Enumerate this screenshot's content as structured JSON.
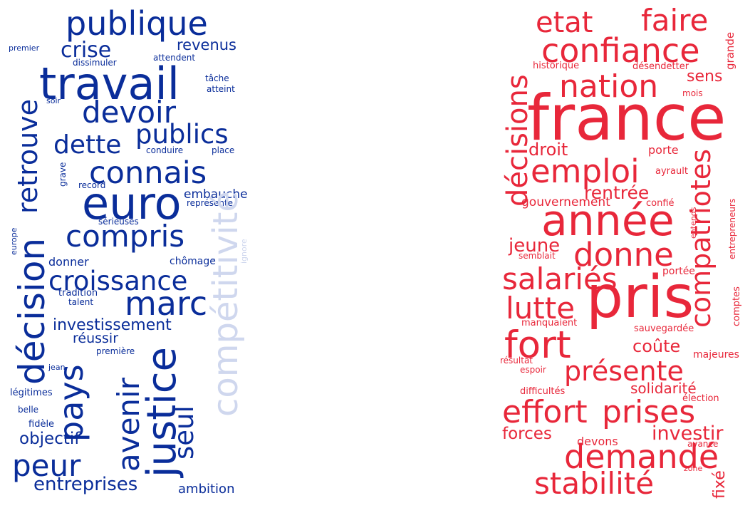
{
  "clouds": [
    {
      "id": "left",
      "color": "#0a2d9a",
      "words": [
        {
          "text": "publique",
          "weight": 0.5
        },
        {
          "text": "crise",
          "weight": 0.32
        },
        {
          "text": "revenus",
          "weight": 0.22
        },
        {
          "text": "premier",
          "weight": 0.08
        },
        {
          "text": "dissimuler",
          "weight": 0.09
        },
        {
          "text": "attendent",
          "weight": 0.09
        },
        {
          "text": "travail",
          "weight": 0.7
        },
        {
          "text": "tâche",
          "weight": 0.1
        },
        {
          "text": "atteint",
          "weight": 0.1
        },
        {
          "text": "soir",
          "weight": 0.09
        },
        {
          "text": "devoir",
          "weight": 0.45
        },
        {
          "text": "retrouve",
          "weight": 0.4
        },
        {
          "text": "publics",
          "weight": 0.42
        },
        {
          "text": "dette",
          "weight": 0.4
        },
        {
          "text": "conduire",
          "weight": 0.1
        },
        {
          "text": "place",
          "weight": 0.1
        },
        {
          "text": "grave",
          "weight": 0.08
        },
        {
          "text": "connais",
          "weight": 0.48
        },
        {
          "text": "record",
          "weight": 0.09
        },
        {
          "text": "euro",
          "weight": 0.8
        },
        {
          "text": "embauche",
          "weight": 0.16
        },
        {
          "text": "représente",
          "weight": 0.1
        },
        {
          "text": "sérieuses",
          "weight": 0.09
        },
        {
          "text": "compris",
          "weight": 0.48
        },
        {
          "text": "compétitivité",
          "weight": 0.55,
          "faded": true
        },
        {
          "text": "ignore",
          "weight": 0.08,
          "faded": true
        },
        {
          "text": "europe",
          "weight": 0.08
        },
        {
          "text": "décision",
          "weight": 0.55
        },
        {
          "text": "donner",
          "weight": 0.14
        },
        {
          "text": "chômage",
          "weight": 0.12
        },
        {
          "text": "croissance",
          "weight": 0.42
        },
        {
          "text": "tradition",
          "weight": 0.11
        },
        {
          "text": "marc",
          "weight": 0.52
        },
        {
          "text": "talent",
          "weight": 0.1
        },
        {
          "text": "investissement",
          "weight": 0.3
        },
        {
          "text": "réussir",
          "weight": 0.2
        },
        {
          "text": "première",
          "weight": 0.09
        },
        {
          "text": "pays",
          "weight": 0.58
        },
        {
          "text": "jean",
          "weight": 0.09
        },
        {
          "text": "avenir",
          "weight": 0.45
        },
        {
          "text": "justice",
          "weight": 0.62
        },
        {
          "text": "seul",
          "weight": 0.48
        },
        {
          "text": "légitimes",
          "weight": 0.1
        },
        {
          "text": "belle",
          "weight": 0.09
        },
        {
          "text": "fidèle",
          "weight": 0.1
        },
        {
          "text": "objectif",
          "weight": 0.26
        },
        {
          "text": "peur",
          "weight": 0.55
        },
        {
          "text": "entreprises",
          "weight": 0.3
        },
        {
          "text": "ambition",
          "weight": 0.14
        }
      ]
    },
    {
      "id": "right",
      "color": "#e8273a",
      "words": [
        {
          "text": "etat",
          "weight": 0.45
        },
        {
          "text": "faire",
          "weight": 0.48
        },
        {
          "text": "grande",
          "weight": 0.1
        },
        {
          "text": "confiance",
          "weight": 0.55
        },
        {
          "text": "historique",
          "weight": 0.1
        },
        {
          "text": "désendetter",
          "weight": 0.1
        },
        {
          "text": "décisions",
          "weight": 0.48
        },
        {
          "text": "nation",
          "weight": 0.5
        },
        {
          "text": "sens",
          "weight": 0.18
        },
        {
          "text": "mois",
          "weight": 0.1
        },
        {
          "text": "france",
          "weight": 1.0
        },
        {
          "text": "droit",
          "weight": 0.22
        },
        {
          "text": "porte",
          "weight": 0.15
        },
        {
          "text": "emploi",
          "weight": 0.5
        },
        {
          "text": "ayrault",
          "weight": 0.11
        },
        {
          "text": "compatriotes",
          "weight": 0.45
        },
        {
          "text": "rentrée",
          "weight": 0.26
        },
        {
          "text": "gouvernement",
          "weight": 0.16
        },
        {
          "text": "confié",
          "weight": 0.12
        },
        {
          "text": "entrepreneurs",
          "weight": 0.1
        },
        {
          "text": "année",
          "weight": 0.75
        },
        {
          "text": "entends",
          "weight": 0.1
        },
        {
          "text": "jeune",
          "weight": 0.28
        },
        {
          "text": "semblait",
          "weight": 0.1
        },
        {
          "text": "donne",
          "weight": 0.55
        },
        {
          "text": "portée",
          "weight": 0.12
        },
        {
          "text": "salariés",
          "weight": 0.44
        },
        {
          "text": "pris",
          "weight": 0.95
        },
        {
          "text": "lutte",
          "weight": 0.44
        },
        {
          "text": "comptes",
          "weight": 0.1
        },
        {
          "text": "manquaient",
          "weight": 0.11
        },
        {
          "text": "sauvegardée",
          "weight": 0.11
        },
        {
          "text": "fort",
          "weight": 0.55
        },
        {
          "text": "coûte",
          "weight": 0.2
        },
        {
          "text": "majeures",
          "weight": 0.11
        },
        {
          "text": "résultat",
          "weight": 0.1
        },
        {
          "text": "espoir",
          "weight": 0.1
        },
        {
          "text": "présente",
          "weight": 0.45
        },
        {
          "text": "solidarité",
          "weight": 0.18
        },
        {
          "text": "difficultés",
          "weight": 0.11
        },
        {
          "text": "élection",
          "weight": 0.11
        },
        {
          "text": "effort",
          "weight": 0.48
        },
        {
          "text": "prises",
          "weight": 0.48
        },
        {
          "text": "investir",
          "weight": 0.26
        },
        {
          "text": "forces",
          "weight": 0.24
        },
        {
          "text": "devons",
          "weight": 0.15
        },
        {
          "text": "avance",
          "weight": 0.1
        },
        {
          "text": "demandé",
          "weight": 0.52
        },
        {
          "text": "zone",
          "weight": 0.1
        },
        {
          "text": "fixé",
          "weight": 0.22
        },
        {
          "text": "stabilité",
          "weight": 0.5
        }
      ]
    }
  ]
}
